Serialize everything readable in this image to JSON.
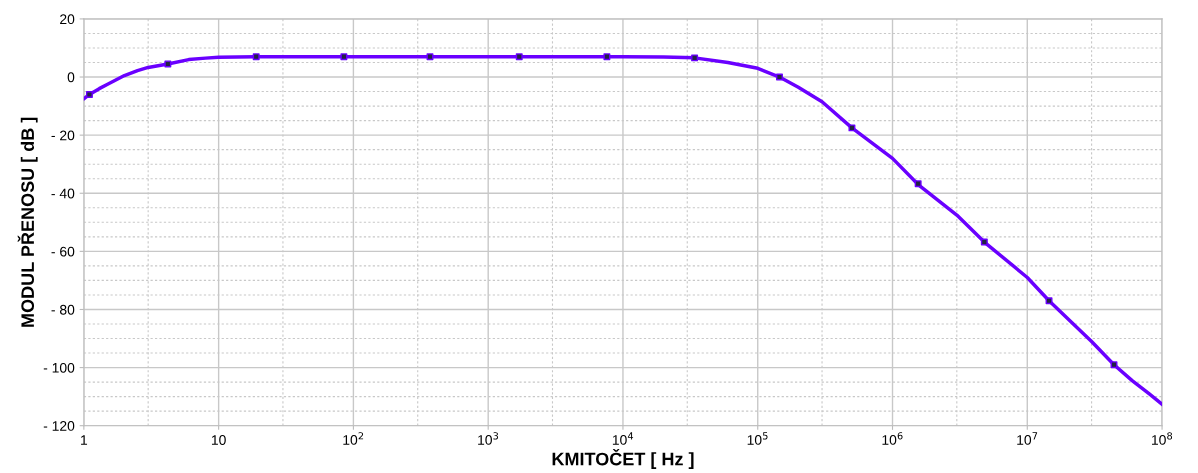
{
  "chart_data": {
    "type": "line",
    "xlabel": "KMITOČET [ Hz ]",
    "ylabel": "MODUL PŘENOSU [ dB ]",
    "log": "x",
    "grid": true,
    "marker": "none",
    "line_style": "solid",
    "xlim": [
      1,
      100000000
    ],
    "ylim": [
      -120,
      20
    ],
    "xticks": [
      1,
      10,
      {
        "value": 100,
        "label": "10$^{2}$"
      },
      {
        "value": 1000,
        "label": "10$^{3}$"
      },
      {
        "value": 10000,
        "label": "10$^{4}$"
      },
      {
        "value": 100000,
        "label": "10$^{5}$"
      },
      {
        "value": 1000000,
        "label": "10$^{6}$"
      },
      {
        "value": 10000000,
        "label": "10$^{7}$"
      },
      {
        "value": 100000000,
        "label": "10$^{8}$"
      }
    ],
    "yticks": [
      {
        "value": -120,
        "label": "- 120"
      },
      {
        "value": -100,
        "label": "- 100"
      },
      {
        "value": -80,
        "label": "- 80"
      },
      {
        "value": -60,
        "label": "- 60"
      },
      {
        "value": -40,
        "label": "- 40"
      },
      {
        "value": -20,
        "label": "- 20"
      },
      0,
      20
    ],
    "series": [
      {
        "color": "#6a00ff",
        "x": [
          1,
          1.1,
          1.3,
          1.5,
          2,
          2.5,
          3,
          4.2,
          6,
          8,
          10,
          19,
          100,
          1000,
          10000,
          20000,
          34000,
          60000,
          100000,
          145000,
          200000,
          300000,
          500000,
          1000000,
          1550000,
          3000000,
          4800000,
          10000000,
          14500000,
          30000000,
          44000000,
          60000000,
          80000000,
          100000000
        ],
        "values": [
          -7.5,
          -6,
          -4,
          -2.5,
          0.5,
          2.2,
          3.3,
          4.5,
          6,
          6.5,
          6.8,
          7,
          7,
          7,
          7,
          6.9,
          6.6,
          5,
          3,
          0,
          -3.5,
          -8.5,
          -17.5,
          -28,
          -37,
          -47.5,
          -56.8,
          -69,
          -77,
          -91,
          -99,
          -104.5,
          -109,
          -112.6
        ]
      },
      {
        "type": "scatter",
        "marker": "square",
        "color": "#6a00ff",
        "x": [
          1.1,
          4.2,
          19,
          85,
          370,
          1700,
          7600,
          34000,
          145000,
          500000,
          1550000,
          4800000,
          14500000,
          44000000
        ],
        "values": [
          -6,
          4.5,
          7,
          7,
          7,
          7,
          7,
          6.6,
          0,
          -17.5,
          -36.7,
          -56.8,
          -77,
          -99
        ]
      }
    ]
  }
}
